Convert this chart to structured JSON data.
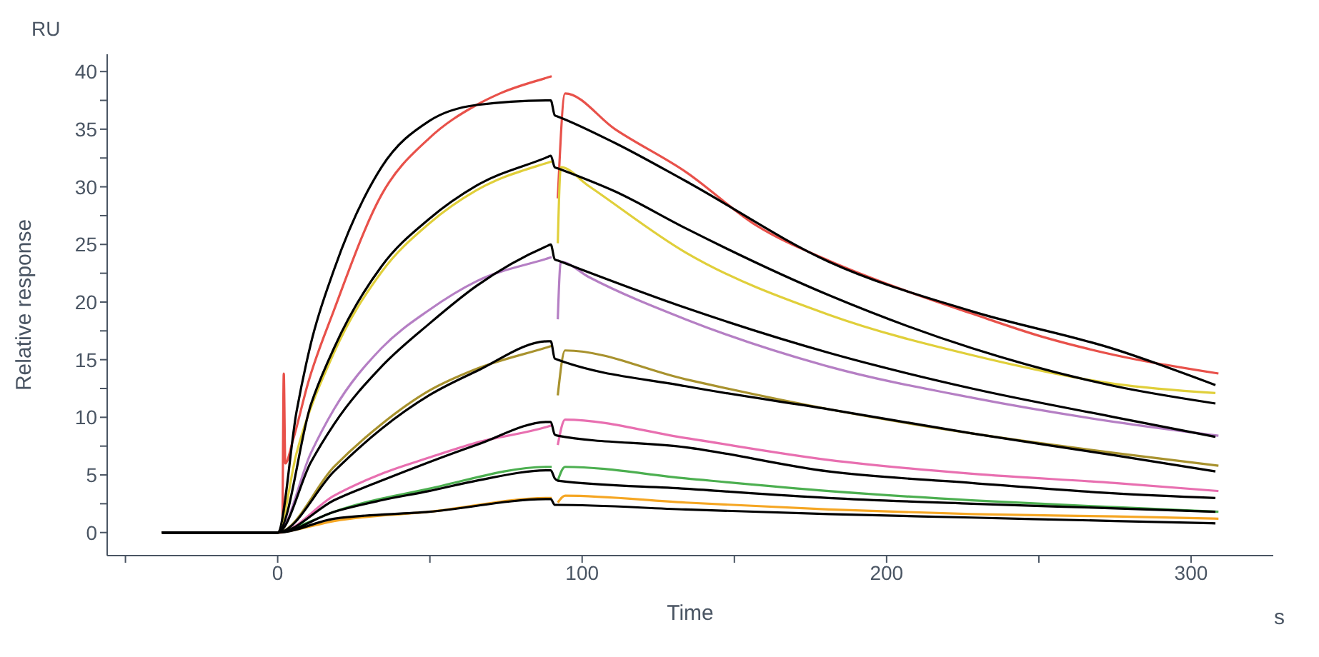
{
  "chart_data": {
    "type": "line",
    "xlabel": "Time",
    "ylabel": "Relative response",
    "annotations": [
      "RU",
      "s"
    ],
    "xlim": [
      -56,
      327
    ],
    "ylim": [
      -2,
      41.5
    ],
    "xticks": [
      {
        "value": -50,
        "label": null
      },
      0,
      {
        "value": 50,
        "label": null
      },
      100,
      {
        "value": 150,
        "label": null
      },
      200,
      {
        "value": 250,
        "label": null
      },
      300
    ],
    "yticks": [
      0,
      {
        "value": 2.5,
        "label": null
      },
      5,
      {
        "value": 7.5,
        "label": null
      },
      10,
      {
        "value": 12.5,
        "label": null
      },
      15,
      {
        "value": 17.5,
        "label": null
      },
      20,
      {
        "value": 22.5,
        "label": null
      },
      25,
      {
        "value": 27.5,
        "label": null
      },
      30,
      {
        "value": 32.5,
        "label": null
      },
      35,
      {
        "value": 37.5,
        "label": null
      },
      40
    ],
    "marker": "none",
    "line_style": "solid",
    "series": [
      {
        "color": "#e8514a",
        "x": [
          -38,
          0,
          1.5,
          2,
          2.5,
          5,
          10,
          18.5,
          34.1,
          49.7,
          65.3,
          73,
          88.8,
          90,
          91,
          92,
          94.4,
          110.8,
          134,
          157.5,
          181,
          204,
          228,
          251,
          275,
          309
        ],
        "values": [
          0,
          0,
          0,
          13.8,
          6,
          8,
          13,
          19.3,
          29.3,
          34.2,
          37.1,
          38.1,
          39.5,
          39.6,
          null,
          29,
          38.1,
          35,
          31.3,
          26.6,
          23.6,
          21.2,
          19,
          17,
          15.4,
          13.8
        ]
      },
      {
        "color": "#e0cf3a",
        "x": [
          -38,
          0,
          6.2,
          18.5,
          34.1,
          49.7,
          65.3,
          88.8,
          90,
          91,
          92,
          93,
          102,
          134,
          181,
          228,
          275,
          308
        ],
        "values": [
          0,
          0,
          6.9,
          15.6,
          22.6,
          26.8,
          29.7,
          32.1,
          32.2,
          null,
          25.1,
          31.7,
          30.1,
          24.3,
          18.9,
          15.4,
          12.9,
          12.1
        ]
      },
      {
        "color": "#b57fc4",
        "x": [
          -38,
          0,
          10.9,
          18.5,
          34.1,
          49.7,
          65.3,
          88.8,
          90,
          91,
          92,
          93,
          102,
          134,
          181,
          228,
          275,
          309
        ],
        "values": [
          0,
          0,
          6.9,
          10.7,
          16,
          19.3,
          21.8,
          23.8,
          23.9,
          null,
          18.5,
          23.5,
          22.2,
          18.5,
          14.4,
          11.7,
          9.6,
          8.4
        ]
      },
      {
        "color": "#a8922e",
        "x": [
          -38,
          0,
          18.5,
          34.1,
          49.7,
          65.3,
          88.8,
          90,
          91,
          92,
          94.4,
          134,
          181,
          228,
          275,
          309
        ],
        "values": [
          0,
          0,
          5.7,
          9.4,
          12.3,
          14.2,
          16.1,
          16.2,
          null,
          11.9,
          15.8,
          13.3,
          10.7,
          8.6,
          6.9,
          5.8
        ]
      },
      {
        "color": "#e86fb0",
        "x": [
          -38,
          0,
          18.5,
          34.1,
          49.7,
          65.3,
          88.8,
          90,
          91,
          92,
          94.4,
          134,
          181,
          228,
          275,
          309
        ],
        "values": [
          0,
          0,
          3.2,
          5.1,
          6.5,
          7.8,
          9.2,
          9.3,
          null,
          7.6,
          9.8,
          8.2,
          6.3,
          5.1,
          4.3,
          3.6
        ]
      },
      {
        "color": "#4caf50",
        "x": [
          -38,
          0,
          6.2,
          18.5,
          49.7,
          88.8,
          90,
          91,
          92,
          94.4,
          134,
          181,
          228,
          275,
          309
        ],
        "values": [
          0,
          0,
          0.5,
          1.8,
          3.8,
          5.7,
          5.7,
          null,
          4.5,
          5.7,
          4.7,
          3.6,
          2.8,
          2.2,
          1.8
        ]
      },
      {
        "color": "#f5a623",
        "x": [
          -38,
          0,
          3,
          18.5,
          49.7,
          88.8,
          90,
          91,
          92,
          94.4,
          134,
          181,
          228,
          275,
          309
        ],
        "values": [
          0,
          0,
          0.1,
          1,
          1.8,
          3,
          3,
          null,
          2.6,
          3.2,
          2.6,
          2,
          1.6,
          1.4,
          1.2
        ]
      },
      {
        "color": "#000000",
        "x": [
          -38,
          0,
          6.2,
          10.9,
          18.5,
          34.1,
          49.7,
          65.3,
          88.8,
          89.7,
          91,
          92,
          110.8,
          134,
          181,
          228,
          275,
          308
        ],
        "values": [
          0,
          0,
          10.5,
          16.4,
          22.8,
          31.7,
          35.7,
          37.1,
          37.5,
          37.5,
          36.2,
          36.1,
          33.8,
          30.5,
          23.5,
          19.2,
          15.9,
          12.8
        ]
      },
      {
        "color": "#000000",
        "x": [
          -38,
          0,
          10.9,
          18.5,
          34.1,
          49.7,
          65.3,
          88.8,
          89.7,
          91,
          92,
          110.8,
          134,
          181,
          228,
          275,
          308
        ],
        "values": [
          0,
          0,
          11.1,
          16,
          23.1,
          27.2,
          30.1,
          32.6,
          32.7,
          31.7,
          31.6,
          29.6,
          26.4,
          20.6,
          16,
          12.7,
          11.2
        ]
      },
      {
        "color": "#000000",
        "x": [
          -38,
          0,
          10.9,
          18.5,
          34.1,
          49.7,
          65.3,
          88.8,
          89.7,
          91,
          92,
          134,
          181,
          228,
          275,
          308
        ],
        "values": [
          0,
          0,
          6.1,
          9.4,
          14.4,
          18.1,
          21.4,
          24.9,
          25,
          23.7,
          23.6,
          19.5,
          15.6,
          12.5,
          10,
          8.3
        ]
      },
      {
        "color": "#000000",
        "x": [
          -38,
          0,
          18.5,
          34.1,
          49.7,
          65.3,
          88.8,
          89.7,
          91,
          92,
          134,
          181,
          228,
          275,
          308
        ],
        "values": [
          0,
          0,
          5.3,
          9,
          11.9,
          14,
          16.6,
          16.6,
          15.1,
          15,
          12.7,
          10.7,
          8.6,
          6.7,
          5.3
        ]
      },
      {
        "color": "#000000",
        "x": [
          -38,
          0,
          18.5,
          34.1,
          49.7,
          65.3,
          88.8,
          89.7,
          91,
          92,
          134,
          181,
          228,
          275,
          308
        ],
        "values": [
          0,
          0,
          2.8,
          4.5,
          6.1,
          7.6,
          9.6,
          9.6,
          8.5,
          8.4,
          7.4,
          5.3,
          4.3,
          3.4,
          3
        ]
      },
      {
        "color": "#000000",
        "x": [
          -38,
          0,
          18.5,
          34.1,
          49.7,
          65.3,
          88.8,
          89.7,
          91,
          92,
          134,
          181,
          228,
          275,
          308
        ],
        "values": [
          0,
          0,
          1.8,
          2.8,
          3.6,
          4.5,
          5.4,
          5.4,
          4.7,
          4.5,
          3.8,
          3,
          2.5,
          2.1,
          1.8
        ]
      },
      {
        "color": "#000000",
        "x": [
          -38,
          0,
          18.5,
          49.7,
          88.8,
          89.7,
          91,
          92,
          134,
          181,
          228,
          275,
          308
        ],
        "values": [
          0,
          0,
          1.2,
          1.8,
          2.9,
          2.9,
          2.4,
          2.4,
          2,
          1.6,
          1.3,
          1,
          0.8
        ]
      }
    ]
  }
}
